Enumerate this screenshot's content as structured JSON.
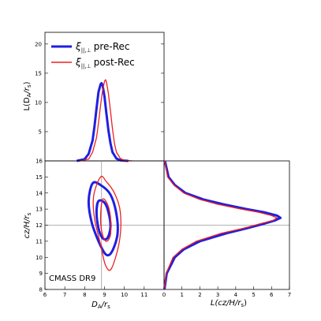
{
  "chart_data": [
    {
      "type": "line",
      "panel": "top-left",
      "ylabel": "L(D_A/r_s)",
      "xlim": [
        6,
        12
      ],
      "ylim": [
        0,
        22
      ],
      "yticks": [
        "5",
        "10",
        "15",
        "20"
      ],
      "legend_position": "top-right",
      "series": [
        {
          "name": "ξ||,⊥ pre-Rec",
          "color": "#1f1fe0",
          "x": [
            7.6,
            8.0,
            8.2,
            8.4,
            8.5,
            8.6,
            8.7,
            8.8,
            8.85,
            8.9,
            9.0,
            9.1,
            9.2,
            9.3,
            9.4,
            9.6,
            9.8,
            10.2
          ],
          "y": [
            0,
            0.3,
            1.2,
            3.5,
            6.0,
            9.0,
            11.8,
            13.1,
            13.3,
            13.0,
            11.0,
            8.0,
            5.2,
            3.0,
            1.5,
            0.4,
            0.1,
            0
          ]
        },
        {
          "name": "ξ||,⊥ post-Rec",
          "color": "#ee2020",
          "x": [
            7.8,
            8.2,
            8.4,
            8.6,
            8.7,
            8.8,
            8.9,
            9.0,
            9.05,
            9.1,
            9.2,
            9.3,
            9.4,
            9.5,
            9.6,
            9.8,
            10.0,
            10.4
          ],
          "y": [
            0,
            0.3,
            1.5,
            4.0,
            6.5,
            9.5,
            12.0,
            13.6,
            13.9,
            13.5,
            11.5,
            8.5,
            5.5,
            3.0,
            1.5,
            0.4,
            0.1,
            0
          ]
        }
      ]
    },
    {
      "type": "scatter",
      "panel": "bottom-left",
      "xlabel": "D_A/r_s",
      "ylabel": "cz/H/r_s",
      "xlim": [
        6,
        12
      ],
      "ylim": [
        8,
        16
      ],
      "xticks": [
        "6",
        "7",
        "8",
        "9",
        "10",
        "11"
      ],
      "yticks": [
        "8",
        "9",
        "10",
        "11",
        "12",
        "13",
        "14",
        "15",
        "16"
      ],
      "fiducial": {
        "x": 8.85,
        "y": 12.0
      },
      "annotation": "CMASS DR9",
      "contours": [
        {
          "series": "pre-Rec",
          "level": "outer",
          "color": "#1f1fe0",
          "points": [
            [
              8.4,
              14.6
            ],
            [
              8.8,
              14.5
            ],
            [
              9.3,
              13.9
            ],
            [
              9.6,
              12.7
            ],
            [
              9.65,
              11.4
            ],
            [
              9.35,
              10.3
            ],
            [
              9.05,
              10.2
            ],
            [
              8.7,
              11.0
            ],
            [
              8.35,
              12.2
            ],
            [
              8.2,
              13.5
            ]
          ]
        },
        {
          "series": "pre-Rec",
          "level": "inner",
          "color": "#1f1fe0",
          "points": [
            [
              8.7,
              13.5
            ],
            [
              9.0,
              13.4
            ],
            [
              9.2,
              12.8
            ],
            [
              9.3,
              11.9
            ],
            [
              9.15,
              11.2
            ],
            [
              8.9,
              11.2
            ],
            [
              8.7,
              11.8
            ],
            [
              8.6,
              12.8
            ]
          ]
        },
        {
          "series": "post-Rec",
          "level": "outer",
          "color": "#ee2020",
          "points": [
            [
              8.8,
              15.0
            ],
            [
              9.1,
              14.7
            ],
            [
              9.5,
              14.0
            ],
            [
              9.8,
              12.8
            ],
            [
              9.75,
              11.0
            ],
            [
              9.35,
              9.3
            ],
            [
              9.05,
              9.5
            ],
            [
              8.8,
              10.8
            ],
            [
              8.5,
              12.4
            ],
            [
              8.45,
              13.8
            ]
          ]
        },
        {
          "series": "post-Rec",
          "level": "inner",
          "color": "#ee2020",
          "points": [
            [
              8.9,
              13.6
            ],
            [
              9.15,
              13.3
            ],
            [
              9.3,
              12.5
            ],
            [
              9.3,
              11.4
            ],
            [
              9.1,
              11.0
            ],
            [
              8.9,
              11.4
            ],
            [
              8.8,
              12.4
            ]
          ]
        }
      ]
    },
    {
      "type": "line",
      "panel": "bottom-right",
      "xlabel": "L(cz/H/r_s)",
      "xlim": [
        0,
        7
      ],
      "ylim": [
        8,
        16
      ],
      "xticks": [
        "0",
        "1",
        "2",
        "3",
        "4",
        "5",
        "6",
        "7"
      ],
      "series": [
        {
          "name": "pre-Rec",
          "color": "#1f1fe0",
          "y": [
            8.0,
            9.0,
            10.0,
            10.5,
            11.0,
            11.5,
            11.8,
            12.1,
            12.3,
            12.45,
            12.6,
            12.8,
            13.0,
            13.3,
            13.6,
            14.0,
            14.5,
            15.0,
            16.0
          ],
          "x": [
            0.02,
            0.15,
            0.6,
            1.1,
            2.0,
            3.5,
            4.6,
            5.6,
            6.2,
            6.5,
            6.3,
            5.6,
            4.6,
            3.3,
            2.2,
            1.2,
            0.6,
            0.25,
            0.05
          ]
        },
        {
          "name": "post-Rec",
          "color": "#ee2020",
          "y": [
            8.0,
            9.0,
            10.0,
            10.5,
            11.0,
            11.5,
            11.8,
            12.1,
            12.3,
            12.45,
            12.6,
            12.8,
            13.0,
            13.3,
            13.6,
            14.0,
            14.5,
            15.0,
            16.0
          ],
          "x": [
            0.02,
            0.12,
            0.5,
            1.0,
            1.8,
            3.2,
            4.4,
            5.4,
            6.1,
            6.3,
            6.0,
            5.3,
            4.3,
            3.0,
            2.0,
            1.1,
            0.55,
            0.2,
            0.04
          ]
        }
      ]
    }
  ],
  "legend": {
    "entries": [
      {
        "math": "ξ",
        "sub": "||,⊥",
        "label": "pre-Rec",
        "color": "#1f1fe0"
      },
      {
        "math": "ξ",
        "sub": "||,⊥",
        "label": "post-Rec",
        "color": "#ee2020"
      }
    ]
  },
  "labels": {
    "top_ylabel_main": "L(D",
    "top_ylabel_sub": "A",
    "top_ylabel_tail": "/r",
    "top_ylabel_sub2": "s",
    "top_ylabel_close": ")",
    "bl_ylabel_main": "cz/H/r",
    "bl_ylabel_sub": "s",
    "bl_xlabel_main": "D",
    "bl_xlabel_sub": "A",
    "bl_xlabel_tail": "/r",
    "bl_xlabel_sub2": "s",
    "br_xlabel_main": "L(cz/H/r",
    "br_xlabel_sub": "s",
    "br_xlabel_close": ")",
    "annotation": "CMASS DR9"
  }
}
